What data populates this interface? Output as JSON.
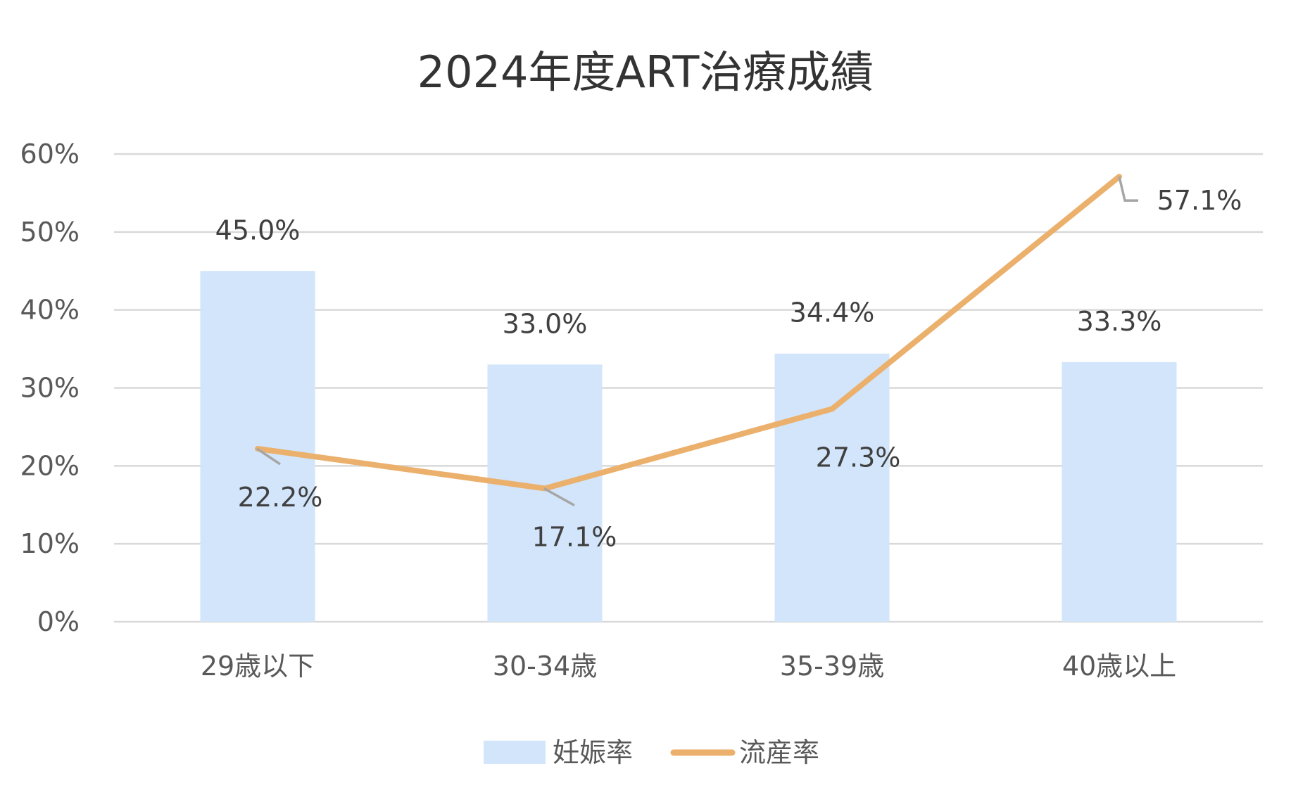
{
  "chart_data": {
    "type": "bar",
    "title": "2024年度ART治療成績",
    "categories": [
      "29歳以下",
      "30-34歳",
      "35-39歳",
      "40歳以上"
    ],
    "series": [
      {
        "name": "妊娠率",
        "type": "bar",
        "values": [
          45.0,
          33.0,
          34.4,
          33.3
        ],
        "labels": [
          "45.0%",
          "33.0%",
          "34.4%",
          "33.3%"
        ],
        "color": "#d2e5fa"
      },
      {
        "name": "流産率",
        "type": "line",
        "values": [
          22.2,
          17.1,
          27.3,
          57.1
        ],
        "labels": [
          "22.2%",
          "17.1%",
          "27.3%",
          "57.1%"
        ],
        "color": "#ebb06c"
      }
    ],
    "ylim": [
      0,
      60
    ],
    "yticks": [
      "0%",
      "10%",
      "20%",
      "30%",
      "40%",
      "50%",
      "60%"
    ],
    "grid": true,
    "legend_position": "bottom"
  }
}
